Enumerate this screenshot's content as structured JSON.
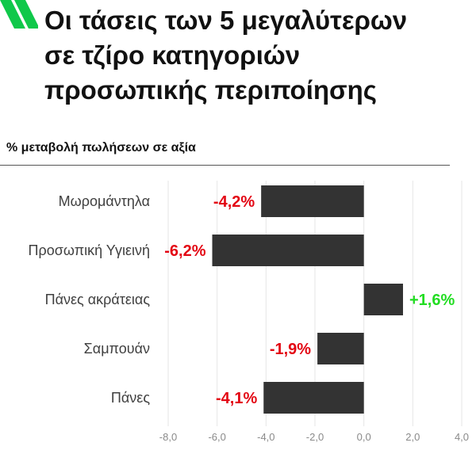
{
  "title_lines": [
    "Οι τάσεις των 5 μεγαλύτερων",
    "σε τζίρο κατηγοριών",
    "προσωπικής περιποίησης"
  ],
  "subtitle": "% μεταβολή πωλήσεων σε αξία",
  "colors": {
    "bar": "#333333",
    "negative_label": "#e30613",
    "positive_label": "#22dd22",
    "logo": "#10c84a",
    "tick": "#8a8a8a",
    "category": "#404040"
  },
  "chart_data": {
    "type": "bar",
    "orientation": "horizontal",
    "categories": [
      "Μωρομάντηλα",
      "Προσωπική Υγιεινή",
      "Πάνες ακράτειας",
      "Σαμπουάν",
      "Πάνες"
    ],
    "values": [
      -4.2,
      -6.2,
      1.6,
      -1.9,
      -4.1
    ],
    "data_labels": [
      "-4,2%",
      "-6,2%",
      "+1,6%",
      "-1,9%",
      "-4,1%"
    ],
    "xlim": [
      -8.0,
      4.0
    ],
    "x_ticks": [
      -8.0,
      -6.0,
      -4.0,
      -2.0,
      0.0,
      2.0,
      4.0
    ],
    "x_tick_labels": [
      "-8,0",
      "-6,0",
      "-4,0",
      "-2,0",
      "0,0",
      "2,0",
      "4,0"
    ],
    "grid": true,
    "legend": "none"
  }
}
